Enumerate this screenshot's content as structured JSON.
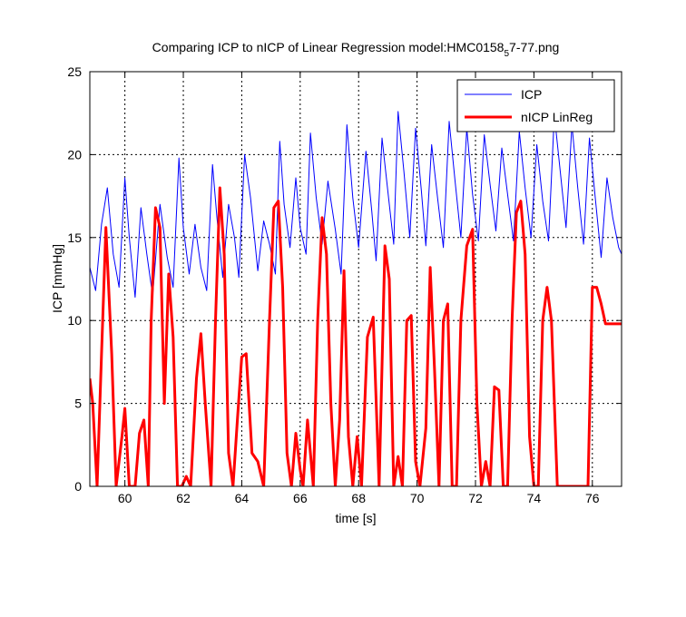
{
  "chart_data": {
    "type": "line",
    "title": "Comparing ICP to nICP of Linear Regression model:HMC0158",
    "title_subscript": "5",
    "title_suffix": "7-77.png",
    "xlabel": "time [s]",
    "ylabel": "ICP [mmHg]",
    "xlim": [
      58.8,
      77
    ],
    "ylim": [
      0,
      25
    ],
    "xticks": [
      60,
      62,
      64,
      66,
      68,
      70,
      72,
      74,
      76
    ],
    "yticks": [
      0,
      5,
      10,
      15,
      20,
      25
    ],
    "grid": true,
    "legend_position": "top-right",
    "series": [
      {
        "name": "ICP",
        "color": "#0000ff",
        "line_width": 1,
        "x": [
          58.8,
          59.0,
          59.2,
          59.4,
          59.6,
          59.8,
          60.0,
          60.15,
          60.35,
          60.55,
          60.75,
          60.95,
          61.2,
          61.45,
          61.65,
          61.85,
          62.0,
          62.2,
          62.4,
          62.6,
          62.8,
          63.0,
          63.15,
          63.35,
          63.55,
          63.75,
          63.9,
          64.1,
          64.3,
          64.55,
          64.75,
          64.95,
          65.15,
          65.3,
          65.45,
          65.65,
          65.85,
          66.0,
          66.2,
          66.35,
          66.55,
          66.75,
          66.95,
          67.2,
          67.4,
          67.6,
          67.8,
          68.0,
          68.25,
          68.45,
          68.6,
          68.8,
          69.0,
          69.2,
          69.35,
          69.55,
          69.75,
          69.95,
          70.15,
          70.3,
          70.5,
          70.7,
          70.9,
          71.1,
          71.3,
          71.5,
          71.7,
          71.9,
          72.1,
          72.3,
          72.5,
          72.7,
          72.9,
          73.1,
          73.3,
          73.5,
          73.7,
          73.9,
          74.1,
          74.3,
          74.5,
          74.7,
          74.9,
          75.1,
          75.3,
          75.5,
          75.7,
          75.9,
          76.1,
          76.3,
          76.5,
          76.7,
          76.9,
          77.0
        ],
        "y": [
          13.2,
          11.8,
          15.8,
          18.0,
          14.0,
          12.0,
          18.6,
          15.0,
          11.4,
          16.8,
          14.0,
          11.5,
          17.0,
          13.8,
          12.0,
          19.8,
          15.6,
          12.8,
          15.8,
          13.2,
          11.8,
          19.4,
          16.2,
          12.6,
          17.0,
          15.0,
          12.6,
          20.0,
          17.4,
          13.0,
          16.0,
          14.6,
          12.8,
          20.8,
          17.0,
          14.4,
          18.6,
          15.6,
          14.0,
          21.3,
          17.4,
          14.6,
          18.4,
          15.5,
          12.8,
          21.8,
          17.4,
          14.4,
          20.2,
          16.6,
          13.6,
          21.0,
          17.8,
          14.6,
          22.6,
          19.0,
          15.0,
          21.6,
          17.8,
          14.5,
          20.6,
          17.4,
          14.4,
          22.0,
          18.4,
          15.0,
          21.6,
          17.6,
          14.8,
          21.2,
          18.2,
          15.4,
          20.4,
          17.6,
          14.8,
          21.4,
          18.0,
          15.0,
          20.6,
          17.2,
          14.8,
          22.4,
          19.0,
          15.6,
          21.8,
          18.0,
          14.6,
          21.0,
          17.4,
          13.8,
          18.6,
          16.2,
          14.4,
          14.0
        ]
      },
      {
        "name": "nICP LinReg",
        "color": "#ff0000",
        "line_width": 3,
        "x": [
          58.8,
          58.9,
          59.05,
          59.2,
          59.35,
          59.55,
          59.7,
          59.9,
          60.0,
          60.15,
          60.35,
          60.5,
          60.65,
          60.8,
          60.9,
          61.05,
          61.2,
          61.35,
          61.5,
          61.65,
          61.8,
          61.95,
          62.1,
          62.25,
          62.45,
          62.6,
          62.75,
          62.95,
          63.1,
          63.25,
          63.4,
          63.55,
          63.7,
          63.85,
          64.0,
          64.15,
          64.35,
          64.55,
          64.75,
          64.95,
          65.1,
          65.25,
          65.4,
          65.55,
          65.7,
          65.85,
          66.0,
          66.1,
          66.25,
          66.45,
          66.6,
          66.75,
          66.9,
          67.05,
          67.2,
          67.35,
          67.5,
          67.65,
          67.8,
          67.95,
          68.1,
          68.3,
          68.5,
          68.7,
          68.9,
          69.05,
          69.2,
          69.35,
          69.5,
          69.65,
          69.8,
          69.95,
          70.1,
          70.3,
          70.45,
          70.6,
          70.75,
          70.9,
          71.05,
          71.2,
          71.35,
          71.5,
          71.7,
          71.9,
          72.05,
          72.2,
          72.35,
          72.5,
          72.65,
          72.8,
          72.95,
          73.1,
          73.25,
          73.4,
          73.55,
          73.7,
          73.85,
          74.0,
          74.15,
          74.3,
          74.45,
          74.6,
          74.8,
          74.95,
          75.1,
          75.25,
          75.4,
          75.55,
          75.7,
          75.85,
          76.0,
          76.15,
          76.3,
          76.45,
          76.6,
          76.75,
          76.9,
          77.0
        ],
        "y": [
          6.5,
          5.0,
          0.0,
          8.0,
          15.6,
          8.0,
          0.0,
          3.0,
          4.7,
          0.0,
          0.0,
          3.2,
          4.0,
          0.0,
          10.0,
          16.8,
          15.6,
          5.0,
          12.8,
          9.0,
          0.0,
          0.0,
          0.6,
          0.0,
          6.5,
          9.2,
          5.0,
          0.0,
          10.0,
          18.0,
          14.0,
          2.0,
          0.0,
          4.0,
          7.8,
          8.0,
          2.0,
          1.5,
          0.0,
          10.0,
          16.8,
          17.2,
          12.0,
          2.0,
          0.0,
          3.2,
          1.0,
          0.0,
          4.0,
          0.0,
          10.0,
          16.2,
          14.0,
          5.0,
          0.0,
          4.0,
          13.0,
          3.0,
          0.0,
          3.0,
          0.0,
          9.0,
          10.2,
          0.0,
          14.5,
          12.5,
          0.0,
          1.8,
          0.0,
          10.0,
          10.3,
          1.5,
          0.0,
          3.5,
          13.2,
          7.0,
          0.0,
          10.0,
          11.0,
          0.0,
          0.0,
          10.0,
          14.5,
          15.5,
          5.0,
          0.0,
          1.5,
          0.0,
          6.0,
          5.8,
          0.0,
          0.0,
          10.0,
          16.5,
          17.2,
          14.0,
          3.0,
          0.0,
          0.0,
          10.0,
          12.0,
          10.0,
          0.0,
          0.0,
          0.0,
          0.0,
          0.0,
          0.0,
          0.0,
          0.0,
          12.0,
          12.0,
          11.0,
          9.8,
          9.8,
          9.8,
          9.8,
          9.8
        ]
      }
    ]
  }
}
